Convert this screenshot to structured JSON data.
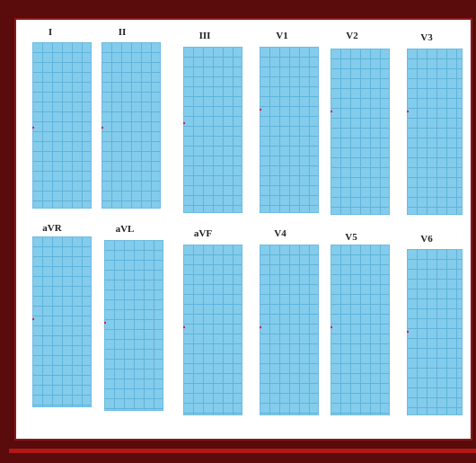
{
  "figure": {
    "colors": {
      "frame": "#5a0b0b",
      "grid_background": "#84ccec",
      "grid_lines": "#5fb3da",
      "trace": "#d11f4f"
    },
    "leads": [
      {
        "id": "I",
        "label": "I",
        "wave": "small-positive"
      },
      {
        "id": "II",
        "label": "II",
        "wave": "tall-r"
      },
      {
        "id": "III",
        "label": "III",
        "wave": "small-r"
      },
      {
        "id": "V1",
        "label": "V1",
        "wave": "deep-s"
      },
      {
        "id": "V2",
        "label": "V2",
        "wave": "rs-deep"
      },
      {
        "id": "V3",
        "label": "V3",
        "wave": "biphasic"
      },
      {
        "id": "aVR",
        "label": "aVR",
        "wave": "negative"
      },
      {
        "id": "aVL",
        "label": "aVL",
        "wave": "small-negative"
      },
      {
        "id": "aVF",
        "label": "aVF",
        "wave": "medium-r"
      },
      {
        "id": "V4",
        "label": "V4",
        "wave": "tall-r"
      },
      {
        "id": "V5",
        "label": "V5",
        "wave": "tall-r"
      },
      {
        "id": "V6",
        "label": "V6",
        "wave": "medium-r"
      }
    ]
  }
}
